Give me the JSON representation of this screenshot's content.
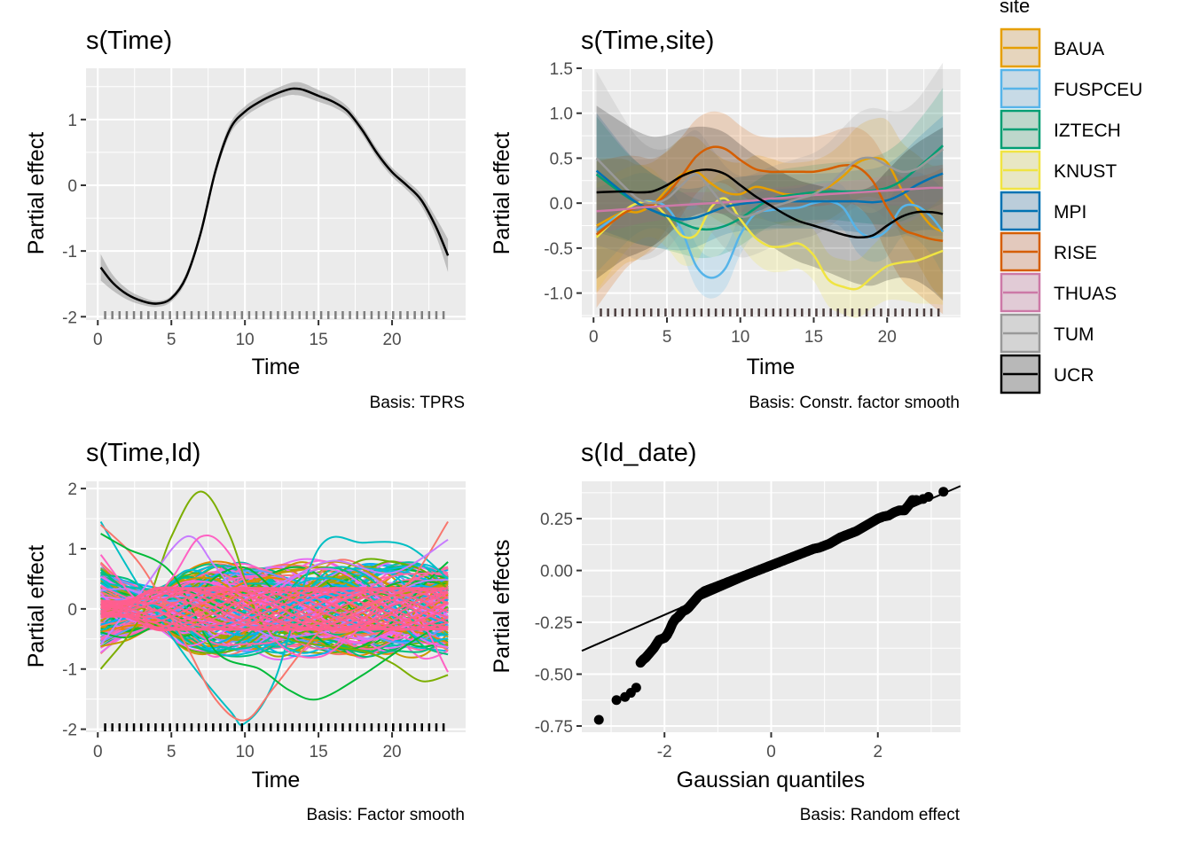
{
  "chart_data": [
    {
      "id": "p1",
      "type": "line",
      "title": "s(Time)",
      "xlabel": "Time",
      "ylabel": "Partial effect",
      "caption": "Basis: TPRS",
      "xlim": [
        -0.8,
        25
      ],
      "ylim": [
        -2.05,
        1.78
      ],
      "xticks": [
        0,
        5,
        10,
        15,
        20
      ],
      "yticks": [
        -2,
        -1,
        0,
        1
      ],
      "ytick_labels": [
        "-2",
        "-1",
        "0",
        "1"
      ],
      "line_color": "#000000",
      "ribbon_color": "#999999",
      "series": [
        {
          "name": "s(Time)",
          "x": [
            0.2,
            1,
            2,
            3,
            4,
            5,
            6,
            7,
            8,
            9,
            10,
            11,
            12,
            13,
            13.5,
            14,
            15,
            16,
            17,
            18,
            19,
            20,
            21,
            22,
            23,
            23.8
          ],
          "y": [
            -1.25,
            -1.48,
            -1.66,
            -1.76,
            -1.8,
            -1.72,
            -1.4,
            -0.72,
            0.22,
            0.86,
            1.12,
            1.27,
            1.38,
            1.46,
            1.47,
            1.45,
            1.36,
            1.27,
            1.12,
            0.83,
            0.48,
            0.2,
            0.0,
            -0.23,
            -0.64,
            -1.07
          ],
          "lower": [
            -1.05,
            -1.36,
            -1.58,
            -1.7,
            -1.76,
            -1.68,
            -1.34,
            -0.66,
            0.29,
            0.94,
            1.2,
            1.35,
            1.46,
            1.55,
            1.57,
            1.55,
            1.45,
            1.35,
            1.19,
            0.9,
            0.55,
            0.27,
            0.07,
            -0.14,
            -0.5,
            -0.82
          ],
          "upper": [
            -1.45,
            -1.6,
            -1.74,
            -1.82,
            -1.85,
            -1.77,
            -1.46,
            -0.78,
            0.15,
            0.78,
            1.04,
            1.19,
            1.3,
            1.37,
            1.37,
            1.35,
            1.27,
            1.19,
            1.05,
            0.76,
            0.41,
            0.13,
            -0.07,
            -0.32,
            -0.78,
            -1.32
          ]
        }
      ],
      "rug_x_range": [
        0.5,
        23.5
      ],
      "rug_count": 48,
      "rug_color": "#7f7f7f"
    },
    {
      "id": "p2",
      "type": "line",
      "title": "s(Time,site)",
      "xlabel": "Time",
      "ylabel": "Partial effect",
      "caption": "Basis: Constr. factor smooth",
      "xlim": [
        -0.8,
        25
      ],
      "ylim": [
        -1.27,
        1.5
      ],
      "xticks": [
        0,
        5,
        10,
        15,
        20
      ],
      "yticks": [
        -1.0,
        -0.5,
        0.0,
        0.5,
        1.0,
        1.5
      ],
      "ytick_labels": [
        "-1.0",
        "-0.5",
        "0.0",
        "0.5",
        "1.0",
        "1.5"
      ],
      "x": [
        0.2,
        2,
        3,
        4,
        5,
        6,
        7,
        8,
        9,
        10,
        11,
        12,
        13,
        14,
        15,
        16,
        17,
        18,
        19,
        20,
        21,
        22,
        23,
        23.8
      ],
      "series": [
        {
          "name": "BAUA",
          "color": "#E69F00",
          "y": [
            -0.25,
            -0.1,
            -0.1,
            -0.02,
            0.15,
            0.32,
            0.35,
            0.22,
            0.12,
            0.1,
            0.18,
            0.15,
            0.1,
            0.1,
            0.12,
            0.18,
            0.3,
            0.45,
            0.5,
            0.45,
            0.15,
            -0.05,
            -0.25,
            -0.32
          ],
          "half_width": 0.35
        },
        {
          "name": "FUSPCEU",
          "color": "#56B4E9",
          "y": [
            -0.3,
            -0.1,
            0.0,
            0.02,
            -0.05,
            -0.3,
            -0.7,
            -0.83,
            -0.72,
            -0.35,
            -0.12,
            -0.08,
            -0.06,
            -0.05,
            0.0,
            0.02,
            -0.05,
            -0.3,
            -0.38,
            -0.3,
            -0.05,
            -0.03,
            -0.15,
            -0.32
          ],
          "half_width": 0.22
        },
        {
          "name": "IZTECH",
          "color": "#009E73",
          "y": [
            0.32,
            0.1,
            0.0,
            -0.08,
            -0.15,
            -0.22,
            -0.28,
            -0.29,
            -0.25,
            -0.17,
            -0.06,
            0.04,
            0.08,
            0.1,
            0.12,
            0.13,
            0.13,
            0.13,
            0.14,
            0.17,
            0.25,
            0.38,
            0.52,
            0.64
          ],
          "half_width": 0.3
        },
        {
          "name": "KNUST",
          "color": "#F0E442",
          "y": [
            -0.38,
            -0.1,
            0.0,
            0.0,
            -0.15,
            -0.36,
            -0.35,
            -0.05,
            0.05,
            -0.18,
            -0.38,
            -0.48,
            -0.48,
            -0.45,
            -0.58,
            -0.85,
            -0.93,
            -0.95,
            -0.82,
            -0.7,
            -0.66,
            -0.64,
            -0.58,
            -0.53
          ],
          "half_width": 0.28
        },
        {
          "name": "MPI",
          "color": "#0072B2",
          "y": [
            0.36,
            0.12,
            0.0,
            -0.08,
            -0.14,
            -0.18,
            -0.16,
            -0.1,
            -0.04,
            -0.01,
            0.01,
            0.02,
            0.02,
            0.02,
            0.02,
            0.02,
            0.02,
            0.02,
            0.01,
            0.03,
            0.1,
            0.2,
            0.28,
            0.33
          ],
          "half_width": 0.3
        },
        {
          "name": "RISE",
          "color": "#D55E00",
          "y": [
            -0.35,
            -0.12,
            -0.05,
            -0.02,
            0.1,
            0.3,
            0.52,
            0.62,
            0.6,
            0.48,
            0.38,
            0.35,
            0.35,
            0.35,
            0.35,
            0.38,
            0.42,
            0.4,
            0.25,
            -0.05,
            -0.28,
            -0.35,
            -0.4,
            -0.42
          ],
          "half_width": 0.38
        },
        {
          "name": "THUAS",
          "color": "#CC79A7",
          "y": [
            -0.09,
            -0.07,
            -0.05,
            -0.04,
            -0.03,
            -0.02,
            -0.01,
            0.0,
            0.01,
            0.02,
            0.03,
            0.05,
            0.06,
            0.08,
            0.09,
            0.1,
            0.11,
            0.12,
            0.13,
            0.14,
            0.15,
            0.16,
            0.17,
            0.17
          ],
          "half_width": 0.12
        },
        {
          "name": "TUM",
          "color": "#999999",
          "y": [
            0.5,
            0.2,
            0.05,
            0.0,
            0.05,
            0.2,
            0.32,
            0.15,
            -0.05,
            -0.15,
            -0.12,
            -0.05,
            0.0,
            0.05,
            0.1,
            0.2,
            0.35,
            0.48,
            0.5,
            0.42,
            0.35,
            0.38,
            0.5,
            0.6
          ],
          "half_width": 0.45
        },
        {
          "name": "UCR",
          "color": "#000000",
          "y": [
            0.12,
            0.13,
            0.12,
            0.13,
            0.2,
            0.3,
            0.36,
            0.37,
            0.32,
            0.2,
            0.08,
            -0.02,
            -0.12,
            -0.2,
            -0.25,
            -0.3,
            -0.35,
            -0.38,
            -0.36,
            -0.25,
            -0.15,
            -0.1,
            -0.1,
            -0.12
          ],
          "half_width": 0.45
        }
      ],
      "legend": {
        "title": "site",
        "position": "right"
      },
      "rug_x_range": [
        0.5,
        23.5
      ],
      "rug_count": 48,
      "rug_color": "#4d3f3f"
    },
    {
      "id": "p3",
      "type": "line",
      "title": "s(Time,Id)",
      "xlabel": "Time",
      "ylabel": "Partial effect",
      "caption": "Basis: Factor smooth",
      "xlim": [
        -0.8,
        25
      ],
      "ylim": [
        -2.05,
        2.12
      ],
      "xticks": [
        0,
        5,
        10,
        15,
        20
      ],
      "yticks": [
        -2,
        -1,
        0,
        1,
        2
      ],
      "ytick_labels": [
        "-2",
        "-1",
        "0",
        "1",
        "2"
      ],
      "n_series_approx": 150,
      "y_range_of_series": [
        -1.9,
        1.95
      ],
      "notable_series": [
        {
          "color": "#7CAE00",
          "x": [
            0.2,
            3,
            5,
            7,
            9,
            11,
            13,
            15,
            18,
            20,
            22,
            23.8
          ],
          "y": [
            -1.0,
            -0.1,
            1.2,
            1.95,
            1.2,
            -0.2,
            -0.5,
            -0.6,
            -0.7,
            -0.9,
            -1.2,
            -1.1
          ]
        },
        {
          "color": "#00BFC4",
          "x": [
            0.2,
            3,
            6,
            9,
            10,
            12,
            15,
            18,
            21,
            23.8
          ],
          "y": [
            1.45,
            0.3,
            -0.8,
            -1.7,
            -1.9,
            -1.2,
            1.0,
            1.1,
            1.05,
            0.5
          ]
        },
        {
          "color": "#F8766D",
          "x": [
            0.2,
            3,
            6,
            8,
            10,
            12,
            15,
            18,
            21,
            23.8
          ],
          "y": [
            1.4,
            0.7,
            -0.6,
            -1.5,
            -1.85,
            -1.3,
            -0.4,
            0.0,
            0.4,
            1.45
          ]
        },
        {
          "color": "#C77CFF",
          "x": [
            0.2,
            3,
            6,
            8,
            10,
            13,
            16,
            20,
            23.8
          ],
          "y": [
            -0.6,
            0.3,
            1.2,
            0.7,
            0.2,
            0.5,
            0.8,
            0.6,
            1.15
          ]
        },
        {
          "color": "#00BA38",
          "x": [
            0.2,
            2,
            5,
            8,
            11,
            13,
            15,
            18,
            21,
            23.8
          ],
          "y": [
            1.25,
            1.0,
            0.6,
            -0.7,
            -1.0,
            -1.35,
            -1.5,
            -1.1,
            -0.6,
            -0.2
          ]
        },
        {
          "color": "#FF61C3",
          "x": [
            0.2,
            3,
            5,
            7,
            9,
            12,
            15,
            18,
            21,
            23.8
          ],
          "y": [
            0.9,
            0.1,
            0.5,
            1.2,
            0.9,
            -0.5,
            -0.8,
            -0.3,
            0.1,
            -1.05
          ]
        }
      ],
      "rug_x_range": [
        0.5,
        23.5
      ],
      "rug_count": 48,
      "rug_color": "#000000"
    },
    {
      "id": "p4",
      "type": "scatter",
      "title": "s(Id_date)",
      "xlabel": "Gaussian quantiles",
      "ylabel": "Partial effects",
      "caption": "Basis: Random effect",
      "xlim": [
        -3.55,
        3.55
      ],
      "ylim": [
        -0.78,
        0.43
      ],
      "xticks": [
        -2,
        0,
        2
      ],
      "xtick_labels": [
        "-2",
        "0",
        "2"
      ],
      "yticks": [
        -0.75,
        -0.5,
        -0.25,
        0.0,
        0.25
      ],
      "ytick_labels": [
        "-0.75",
        "-0.50",
        "-0.25",
        "0.00",
        "0.25"
      ],
      "reference_line": {
        "slope": 0.112,
        "intercept": 0.01
      },
      "points": {
        "x": [
          -3.23,
          -2.9,
          -2.74,
          -2.63,
          -2.53,
          -2.45,
          -2.4,
          -2.35,
          -2.3,
          -2.25,
          -2.2,
          -2.15,
          -2.1,
          -2.05,
          -2.0,
          -1.95,
          -1.9,
          -1.85,
          -1.8,
          -1.75,
          -1.7,
          -1.65,
          -1.6,
          -1.55,
          -1.5,
          -1.45,
          -1.4,
          -1.35,
          -1.3,
          -1.25,
          -1.2,
          -1.15,
          -1.1,
          -1.0,
          -0.9,
          -0.8,
          -0.7,
          -0.6,
          -0.5,
          -0.4,
          -0.3,
          -0.2,
          -0.1,
          0.0,
          0.1,
          0.2,
          0.3,
          0.4,
          0.5,
          0.6,
          0.7,
          0.8,
          0.9,
          1.0,
          1.1,
          1.2,
          1.3,
          1.4,
          1.5,
          1.6,
          1.7,
          1.8,
          1.9,
          2.0,
          2.1,
          2.2,
          2.3,
          2.4,
          2.5,
          2.58,
          2.65,
          2.72,
          2.85,
          2.95,
          3.23
        ],
        "y": [
          -0.72,
          -0.625,
          -0.61,
          -0.59,
          -0.565,
          -0.445,
          -0.43,
          -0.42,
          -0.405,
          -0.39,
          -0.375,
          -0.355,
          -0.335,
          -0.33,
          -0.325,
          -0.31,
          -0.285,
          -0.255,
          -0.235,
          -0.225,
          -0.21,
          -0.195,
          -0.19,
          -0.18,
          -0.165,
          -0.15,
          -0.135,
          -0.12,
          -0.11,
          -0.1,
          -0.095,
          -0.09,
          -0.085,
          -0.075,
          -0.065,
          -0.055,
          -0.045,
          -0.035,
          -0.025,
          -0.015,
          -0.005,
          0.005,
          0.015,
          0.025,
          0.035,
          0.045,
          0.055,
          0.065,
          0.075,
          0.085,
          0.095,
          0.105,
          0.11,
          0.12,
          0.13,
          0.145,
          0.16,
          0.17,
          0.18,
          0.19,
          0.205,
          0.22,
          0.235,
          0.25,
          0.26,
          0.265,
          0.28,
          0.29,
          0.29,
          0.315,
          0.34,
          0.34,
          0.345,
          0.355,
          0.38
        ]
      },
      "point_color": "#000000"
    }
  ],
  "legend": {
    "title": "site",
    "items": [
      {
        "label": "BAUA",
        "color": "#E69F00",
        "fill": "#E6D5BD"
      },
      {
        "label": "FUSPCEU",
        "color": "#56B4E9",
        "fill": "#C7DAE6"
      },
      {
        "label": "IZTECH",
        "color": "#009E73",
        "fill": "#BDD7CB"
      },
      {
        "label": "KNUST",
        "color": "#F0E442",
        "fill": "#E8E7C4"
      },
      {
        "label": "MPI",
        "color": "#0072B2",
        "fill": "#BBCDDA"
      },
      {
        "label": "RISE",
        "color": "#D55E00",
        "fill": "#E3C9BD"
      },
      {
        "label": "THUAS",
        "color": "#CC79A7",
        "fill": "#E1CBD6"
      },
      {
        "label": "TUM",
        "color": "#999999",
        "fill": "#D4D4D4"
      },
      {
        "label": "UCR",
        "color": "#000000",
        "fill": "#B8B8B8"
      }
    ]
  }
}
